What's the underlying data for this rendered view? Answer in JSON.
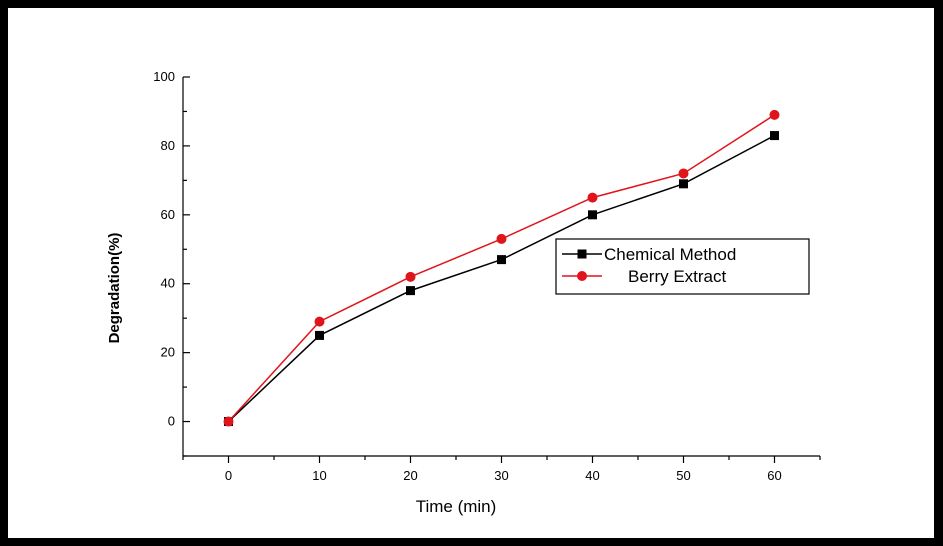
{
  "chart_data": {
    "type": "line",
    "title": "",
    "xlabel": "Time (min)",
    "ylabel": "Degradation(%)",
    "xlim": [
      -5,
      65
    ],
    "ylim": [
      -10,
      100
    ],
    "x_ticks": [
      0,
      10,
      20,
      30,
      40,
      50,
      60
    ],
    "y_ticks": [
      0,
      20,
      40,
      60,
      80,
      100
    ],
    "x": [
      0,
      10,
      20,
      30,
      40,
      50,
      60
    ],
    "grid": false,
    "legend_position": "right",
    "series": [
      {
        "name": "Chemical Method",
        "values": [
          0,
          25,
          38,
          47,
          60,
          69,
          83
        ],
        "color": "#000000",
        "marker": "square"
      },
      {
        "name": "Berry Extract",
        "values": [
          0,
          29,
          42,
          53,
          65,
          72,
          89
        ],
        "color": "#e0141b",
        "marker": "circle"
      }
    ]
  }
}
